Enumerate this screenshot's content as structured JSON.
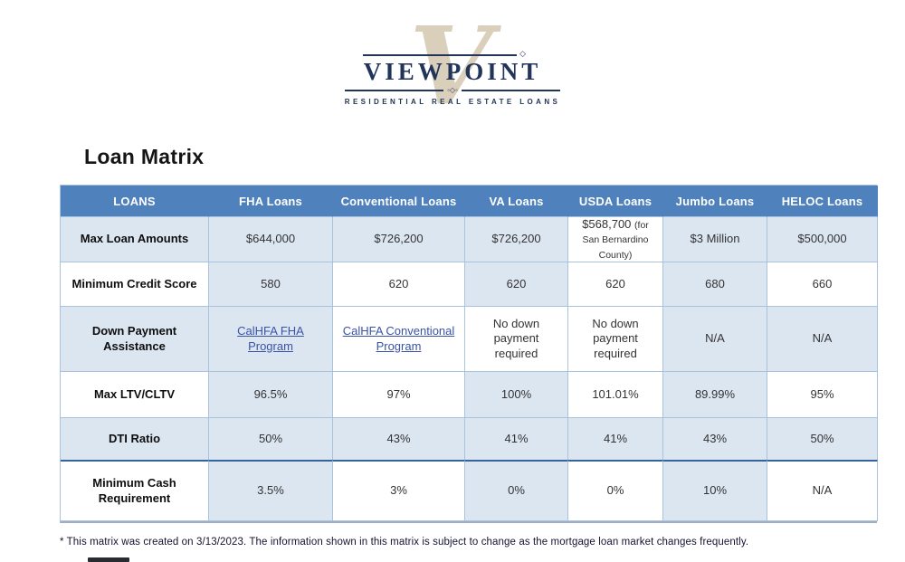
{
  "logo": {
    "v": "V",
    "name": "VIEWPOINT",
    "tagline": "RESIDENTIAL  REAL  ESTATE  LOANS"
  },
  "title": "Loan Matrix",
  "colors": {
    "header_bg": "#4f81bd",
    "cell_blue": "#dce6f1",
    "border": "#a9c3de",
    "thick_separator": "#35639b",
    "link": "#3a53a4",
    "logo_navy": "#22345a",
    "logo_beige": "#d9cfba"
  },
  "table": {
    "header": [
      "LOANS",
      "FHA Loans",
      "Conventional Loans",
      "VA Loans",
      "USDA Loans",
      "Jumbo Loans",
      "HELOC Loans"
    ],
    "rows": [
      {
        "label": "Max Loan Amounts",
        "label_bg": "blue",
        "cells": [
          {
            "text": "$644,000",
            "bg": "blue"
          },
          {
            "text": "$726,200",
            "bg": "blue"
          },
          {
            "text": "$726,200",
            "bg": "blue"
          },
          {
            "text": "$568,700",
            "note": "(for San Bernardino County)",
            "bg": "white"
          },
          {
            "text": "$3 Million",
            "bg": "blue"
          },
          {
            "text": "$500,000",
            "bg": "blue"
          }
        ]
      },
      {
        "label": "Minimum Credit Score",
        "label_bg": "white",
        "cells": [
          {
            "text": "580",
            "bg": "blue"
          },
          {
            "text": "620",
            "bg": "white"
          },
          {
            "text": "620",
            "bg": "blue"
          },
          {
            "text": "620",
            "bg": "white"
          },
          {
            "text": "680",
            "bg": "blue"
          },
          {
            "text": "660",
            "bg": "white"
          }
        ]
      },
      {
        "label": "Down Payment Assistance",
        "label_bg": "blue",
        "cells": [
          {
            "text": "CalHFA FHA Program",
            "link": true,
            "bg": "blue"
          },
          {
            "text": "CalHFA Conventional Program",
            "link": true,
            "bg": "white"
          },
          {
            "text": "No down payment required",
            "bg": "white"
          },
          {
            "text": "No down payment required",
            "bg": "white"
          },
          {
            "text": "N/A",
            "bg": "blue"
          },
          {
            "text": "N/A",
            "bg": "blue"
          }
        ]
      },
      {
        "label": "Max LTV/CLTV",
        "label_bg": "white",
        "cells": [
          {
            "text": "96.5%",
            "bg": "blue"
          },
          {
            "text": "97%",
            "bg": "white"
          },
          {
            "text": "100%",
            "bg": "blue"
          },
          {
            "text": "101.01%",
            "bg": "white"
          },
          {
            "text": "89.99%",
            "bg": "blue"
          },
          {
            "text": "95%",
            "bg": "white"
          }
        ]
      },
      {
        "label": "DTI Ratio",
        "label_bg": "blue",
        "cells": [
          {
            "text": "50%",
            "bg": "blue"
          },
          {
            "text": "43%",
            "bg": "blue"
          },
          {
            "text": "41%",
            "bg": "blue"
          },
          {
            "text": "41%",
            "bg": "blue"
          },
          {
            "text": "43%",
            "bg": "blue"
          },
          {
            "text": "50%",
            "bg": "blue"
          }
        ]
      },
      {
        "label": "Minimum Cash Requirement",
        "label_bg": "white",
        "thick_top": true,
        "cells": [
          {
            "text": "3.5%",
            "bg": "blue"
          },
          {
            "text": "3%",
            "bg": "white"
          },
          {
            "text": "0%",
            "bg": "blue"
          },
          {
            "text": "0%",
            "bg": "white"
          },
          {
            "text": "10%",
            "bg": "blue"
          },
          {
            "text": "N/A",
            "bg": "white"
          }
        ]
      }
    ]
  },
  "footnote": "* This matrix was created on 3/13/2023.  The information shown in this matrix is subject to change as the mortgage loan market changes frequently."
}
